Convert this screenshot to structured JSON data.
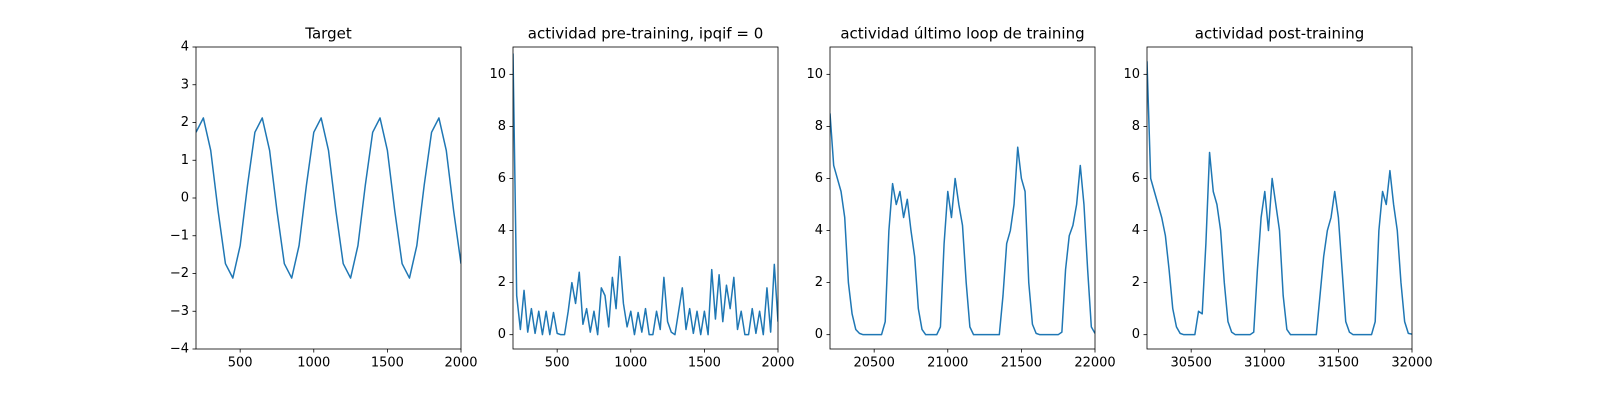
{
  "chart_data": [
    {
      "type": "line",
      "title": "Target",
      "color": "#1f77b4",
      "x": [
        200,
        250,
        300,
        350,
        400,
        450,
        500,
        550,
        600,
        650,
        700,
        750,
        800,
        850,
        900,
        950,
        1000,
        1050,
        1100,
        1150,
        1200,
        1250,
        1300,
        1350,
        1400,
        1450,
        1500,
        1550,
        1600,
        1650,
        1700,
        1750,
        1800,
        1850,
        1900,
        1950,
        2000
      ],
      "values": [
        1.74,
        2.12,
        1.26,
        -0.34,
        -1.74,
        -2.12,
        -1.26,
        0.34,
        1.74,
        2.12,
        1.26,
        -0.34,
        -1.74,
        -2.12,
        -1.26,
        0.34,
        1.74,
        2.12,
        1.26,
        -0.34,
        -1.74,
        -2.12,
        -1.26,
        0.34,
        1.74,
        2.12,
        1.26,
        -0.34,
        -1.74,
        -2.12,
        -1.26,
        0.34,
        1.74,
        2.12,
        1.26,
        -0.34,
        -1.74
      ],
      "xlim": [
        200,
        2000
      ],
      "xticks": [
        500,
        1000,
        1500,
        2000
      ],
      "ylim": [
        -4,
        4
      ],
      "yticks": [
        {
          "value": -4,
          "label": "−4"
        },
        {
          "value": -3,
          "label": "−3"
        },
        {
          "value": -2,
          "label": "−2"
        },
        {
          "value": -1,
          "label": "−1"
        },
        0,
        1,
        2,
        3,
        4
      ]
    },
    {
      "type": "line",
      "title": "actividad pre-training, ipqif = 0",
      "color": "#1f77b4",
      "x": [
        200,
        225,
        250,
        275,
        300,
        325,
        350,
        375,
        400,
        425,
        450,
        475,
        500,
        525,
        550,
        575,
        600,
        625,
        650,
        675,
        700,
        725,
        750,
        775,
        800,
        825,
        850,
        875,
        900,
        925,
        950,
        975,
        1000,
        1025,
        1050,
        1075,
        1100,
        1125,
        1150,
        1175,
        1200,
        1225,
        1250,
        1275,
        1300,
        1325,
        1350,
        1375,
        1400,
        1425,
        1450,
        1475,
        1500,
        1525,
        1550,
        1575,
        1600,
        1625,
        1650,
        1675,
        1700,
        1725,
        1750,
        1775,
        1800,
        1825,
        1850,
        1875,
        1900,
        1925,
        1950,
        1975,
        2000
      ],
      "values": [
        10.8,
        1.5,
        0.2,
        1.7,
        0.1,
        1.0,
        0.05,
        0.9,
        0,
        0.9,
        0,
        0.85,
        0.05,
        0,
        0,
        0.9,
        2.0,
        1.2,
        2.4,
        0.4,
        1.0,
        0.1,
        0.9,
        0,
        1.8,
        1.5,
        0.3,
        2.2,
        1.0,
        3.0,
        1.2,
        0.3,
        0.9,
        0,
        0.85,
        0.1,
        1.0,
        0,
        0,
        0.9,
        0.2,
        2.2,
        0.5,
        0.1,
        0,
        0.9,
        1.8,
        0.2,
        1.0,
        0.05,
        0.9,
        0,
        0.9,
        0,
        2.5,
        0.6,
        2.3,
        0.5,
        1.9,
        1.0,
        2.2,
        0.2,
        0.9,
        0,
        0,
        1.0,
        0.05,
        0.9,
        0,
        1.8,
        0.1,
        2.7,
        0.5
      ],
      "xlim": [
        200,
        2000
      ],
      "xticks": [
        500,
        1000,
        1500,
        2000
      ],
      "ylim": [
        -0.55,
        11.05
      ],
      "yticks": [
        0,
        2,
        4,
        6,
        8,
        10
      ]
    },
    {
      "type": "line",
      "title": "actividad último loop de training",
      "color": "#1f77b4",
      "x": [
        20200,
        20225,
        20250,
        20275,
        20300,
        20325,
        20350,
        20375,
        20400,
        20425,
        20450,
        20475,
        20500,
        20525,
        20550,
        20575,
        20600,
        20625,
        20650,
        20675,
        20700,
        20725,
        20750,
        20775,
        20800,
        20825,
        20850,
        20875,
        20900,
        20925,
        20950,
        20975,
        21000,
        21025,
        21050,
        21075,
        21100,
        21125,
        21150,
        21175,
        21200,
        21225,
        21250,
        21275,
        21300,
        21325,
        21350,
        21375,
        21400,
        21425,
        21450,
        21475,
        21500,
        21525,
        21550,
        21575,
        21600,
        21625,
        21650,
        21675,
        21700,
        21725,
        21750,
        21775,
        21800,
        21825,
        21850,
        21875,
        21900,
        21925,
        21950,
        21975,
        22000
      ],
      "values": [
        8.5,
        6.5,
        6.0,
        5.5,
        4.5,
        2.0,
        0.8,
        0.2,
        0.05,
        0,
        0,
        0,
        0,
        0,
        0,
        0.5,
        4.0,
        5.8,
        5.0,
        5.5,
        4.5,
        5.2,
        4.0,
        3.0,
        1.0,
        0.2,
        0,
        0,
        0,
        0,
        0.3,
        3.5,
        5.5,
        4.5,
        6.0,
        5.0,
        4.2,
        2.0,
        0.3,
        0,
        0,
        0,
        0,
        0,
        0,
        0,
        0,
        1.5,
        3.5,
        4.0,
        5.0,
        7.2,
        6.0,
        5.5,
        2.0,
        0.4,
        0.05,
        0,
        0,
        0,
        0,
        0,
        0,
        0.1,
        2.5,
        3.8,
        4.2,
        5.0,
        6.5,
        5.0,
        2.5,
        0.3,
        0.05
      ],
      "xlim": [
        20200,
        22000
      ],
      "xticks": [
        20500,
        21000,
        21500,
        22000
      ],
      "ylim": [
        -0.55,
        11.05
      ],
      "yticks": [
        0,
        2,
        4,
        6,
        8,
        10
      ]
    },
    {
      "type": "line",
      "title": "actividad post-training",
      "color": "#1f77b4",
      "x": [
        30200,
        30225,
        30250,
        30275,
        30300,
        30325,
        30350,
        30375,
        30400,
        30425,
        30450,
        30475,
        30500,
        30525,
        30550,
        30575,
        30600,
        30625,
        30650,
        30675,
        30700,
        30725,
        30750,
        30775,
        30800,
        30825,
        30850,
        30875,
        30900,
        30925,
        30950,
        30975,
        31000,
        31025,
        31050,
        31075,
        31100,
        31125,
        31150,
        31175,
        31200,
        31225,
        31250,
        31275,
        31300,
        31325,
        31350,
        31375,
        31400,
        31425,
        31450,
        31475,
        31500,
        31525,
        31550,
        31575,
        31600,
        31625,
        31650,
        31675,
        31700,
        31725,
        31750,
        31775,
        31800,
        31825,
        31850,
        31875,
        31900,
        31925,
        31950,
        31975,
        32000
      ],
      "values": [
        10.5,
        6.0,
        5.5,
        5.0,
        4.5,
        3.8,
        2.5,
        1.0,
        0.3,
        0.05,
        0,
        0,
        0,
        0,
        0.9,
        0.8,
        3.5,
        7.0,
        5.5,
        5.0,
        4.0,
        2.0,
        0.5,
        0.1,
        0,
        0,
        0,
        0,
        0,
        0.1,
        2.5,
        4.5,
        5.5,
        4.0,
        6.0,
        5.0,
        4.0,
        1.5,
        0.2,
        0,
        0,
        0,
        0,
        0,
        0,
        0,
        0,
        1.5,
        3.0,
        4.0,
        4.5,
        5.5,
        4.5,
        2.5,
        0.5,
        0.1,
        0,
        0,
        0,
        0,
        0,
        0,
        0.5,
        4.0,
        5.5,
        5.0,
        6.3,
        5.0,
        4.0,
        2.0,
        0.5,
        0.05,
        0.02
      ],
      "xlim": [
        30200,
        32000
      ],
      "xticks": [
        30500,
        31000,
        31500,
        32000
      ],
      "ylim": [
        -0.55,
        11.05
      ],
      "yticks": [
        0,
        2,
        4,
        6,
        8,
        10
      ]
    }
  ]
}
